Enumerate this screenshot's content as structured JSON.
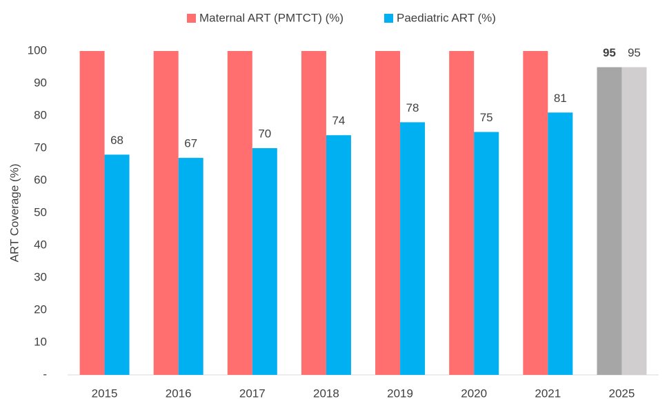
{
  "chart_data": {
    "type": "bar",
    "y_label": "ART Coverage (%)",
    "categories": [
      "2015",
      "2016",
      "2017",
      "2018",
      "2019",
      "2020",
      "2021",
      "2025"
    ],
    "series": [
      {
        "name": "Maternal ART (PMTCT) (%)",
        "color": "#ff6f6f",
        "colors": [
          "#ff6f6f",
          "#ff6f6f",
          "#ff6f6f",
          "#ff6f6f",
          "#ff6f6f",
          "#ff6f6f",
          "#ff6f6f",
          "#a6a6a6"
        ],
        "values": [
          100,
          100,
          100,
          100,
          100,
          100,
          100,
          95
        ],
        "value_labels": [
          null,
          null,
          null,
          null,
          null,
          null,
          null,
          "95"
        ],
        "bold_labels": true
      },
      {
        "name": "Paediatric ART (%)",
        "color": "#00b0f0",
        "colors": [
          "#00b0f0",
          "#00b0f0",
          "#00b0f0",
          "#00b0f0",
          "#00b0f0",
          "#00b0f0",
          "#00b0f0",
          "#d0cece"
        ],
        "values": [
          68,
          67,
          70,
          74,
          78,
          75,
          81,
          95
        ]
      }
    ],
    "ylim": [
      0,
      100
    ],
    "yticks": [
      {
        "value": 0,
        "label": "-"
      },
      10,
      20,
      30,
      40,
      50,
      60,
      70,
      80,
      90,
      100
    ],
    "grid": false,
    "legend": "top"
  }
}
